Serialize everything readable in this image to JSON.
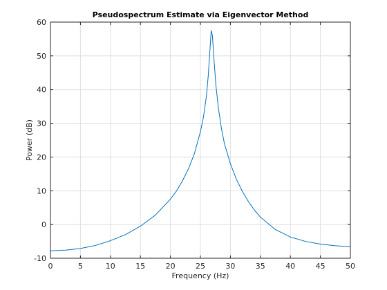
{
  "chart_data": {
    "type": "line",
    "title": "Pseudospectrum Estimate via Eigenvector Method",
    "xlabel": "Frequency (Hz)",
    "ylabel": "Power (dB)",
    "xlim": [
      0,
      50
    ],
    "ylim": [
      -10,
      60
    ],
    "xticks": [
      "0",
      "5",
      "10",
      "15",
      "20",
      "25",
      "30",
      "35",
      "40",
      "45",
      "50"
    ],
    "yticks": [
      "-10",
      "0",
      "10",
      "20",
      "30",
      "40",
      "50",
      "60"
    ],
    "grid": true,
    "line_color": "#0072bd",
    "series": [
      {
        "x": [
          0,
          2.5,
          5,
          7.5,
          10,
          12.5,
          15,
          17.5,
          20,
          21,
          22,
          23,
          24,
          25,
          25.5,
          26,
          26.3,
          26.6,
          26.8,
          27.0,
          27.3,
          27.6,
          28,
          28.5,
          29,
          30,
          31,
          32,
          33,
          34,
          35,
          37.5,
          40,
          42.5,
          45,
          47.5,
          50
        ],
        "y": [
          -7.8,
          -7.6,
          -7.1,
          -6.2,
          -4.8,
          -3.0,
          -0.5,
          2.8,
          7.5,
          9.9,
          12.9,
          16.5,
          21.0,
          27.5,
          31.8,
          38.0,
          44.0,
          52.0,
          57.5,
          56.0,
          48.0,
          41.0,
          34.5,
          28.5,
          24.0,
          18.0,
          13.4,
          9.8,
          6.8,
          4.3,
          2.2,
          -1.5,
          -3.7,
          -5.0,
          -5.8,
          -6.3,
          -6.6
        ]
      }
    ]
  }
}
